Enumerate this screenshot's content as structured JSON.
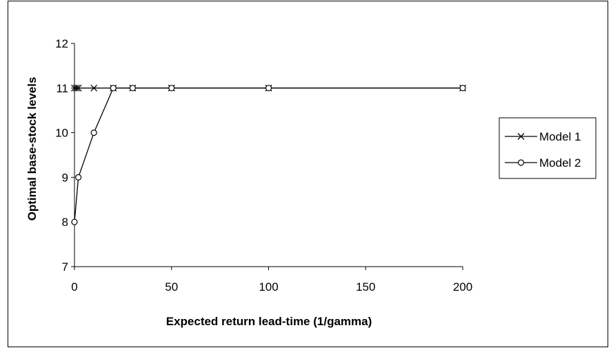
{
  "chart_data": {
    "type": "line",
    "xlabel": "Expected return lead-time (1/gamma)",
    "ylabel": "Optimal base-stock levels",
    "xlim": [
      0,
      200
    ],
    "ylim": [
      7,
      12
    ],
    "xticks": [
      0,
      50,
      100,
      150,
      200
    ],
    "yticks": [
      7,
      8,
      9,
      10,
      11,
      12
    ],
    "grid": false,
    "legend_position": "right",
    "series": [
      {
        "name": "Model 1",
        "marker": "x",
        "color": "#000000",
        "x": [
          0,
          1,
          2,
          10,
          20,
          30,
          50,
          100,
          200
        ],
        "y": [
          11,
          11,
          11,
          11,
          11,
          11,
          11,
          11,
          11
        ]
      },
      {
        "name": "Model 2",
        "marker": "circle",
        "color": "#000000",
        "x": [
          0,
          2,
          10,
          20,
          30,
          50,
          100,
          200
        ],
        "y": [
          8,
          9,
          10,
          11,
          11,
          11,
          11,
          11
        ]
      }
    ]
  }
}
